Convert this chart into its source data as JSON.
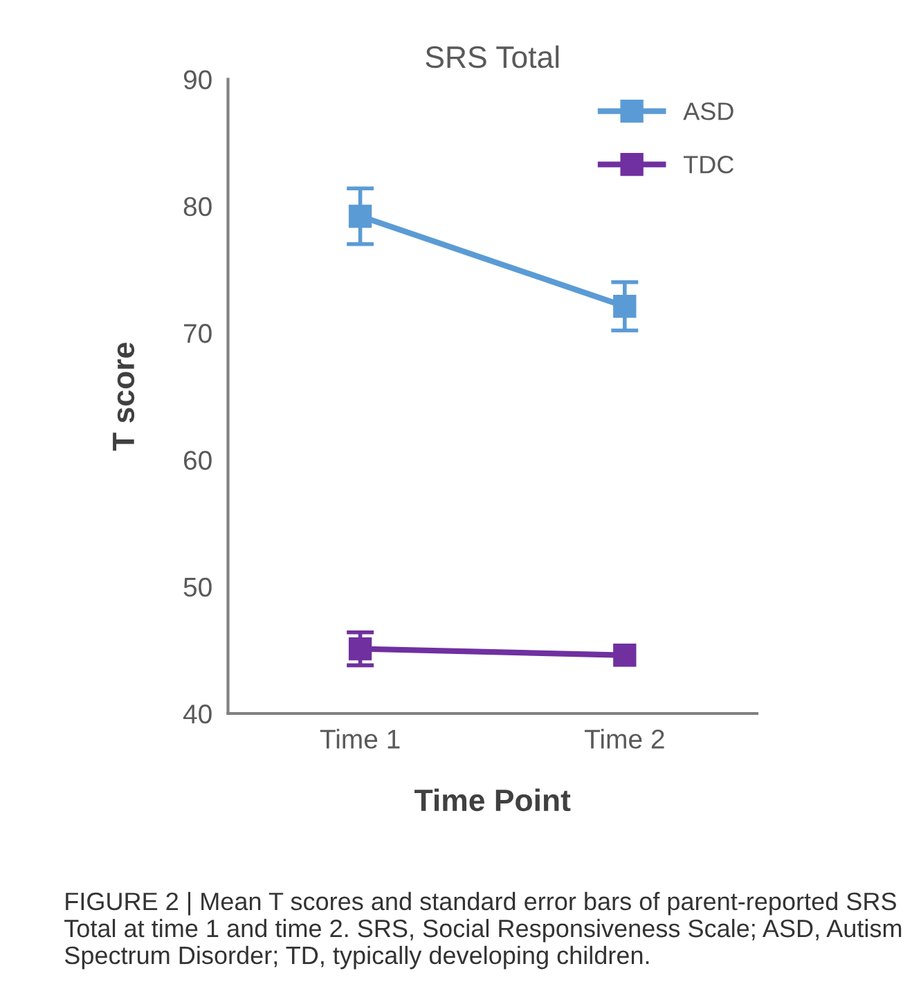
{
  "chart_data": {
    "type": "line",
    "title": "SRS Total",
    "xlabel": "Time Point",
    "ylabel": "T score",
    "categories": [
      "Time 1",
      "Time 2"
    ],
    "series": [
      {
        "name": "ASD",
        "color": "#5b9bd5",
        "values": [
          79.2,
          72.1
        ],
        "errors": [
          2.2,
          1.9
        ]
      },
      {
        "name": "TDC",
        "color": "#7030a0",
        "values": [
          45.1,
          44.6
        ],
        "errors": [
          1.3,
          null
        ]
      }
    ],
    "ylim": [
      40,
      90
    ],
    "yticks": [
      40,
      50,
      60,
      70,
      80,
      90
    ],
    "grid": false,
    "legend": "top right",
    "marker": "square",
    "line_style": "solid",
    "annotations": [
      "FIGURE 2 | Mean T scores and standard error bars of parent-reported SRS Total at time 1 and time 2. SRS, Social Responsiveness Scale; ASD, Autism Spectrum Disorder; TD, typically developing children."
    ]
  }
}
